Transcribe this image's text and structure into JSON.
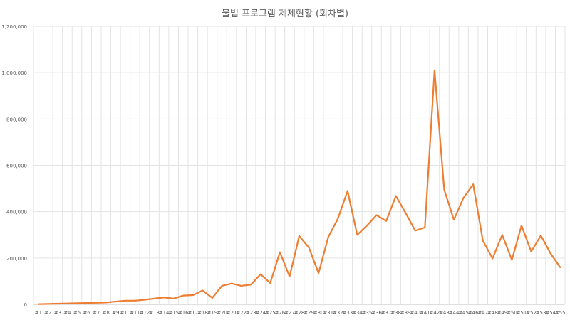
{
  "chart_data": {
    "type": "line",
    "title": "불법 프로그램 제제현황 (회차별)",
    "xlabel": "",
    "ylabel": "",
    "ylim": [
      0,
      1200000
    ],
    "yticks": [
      0,
      200000,
      400000,
      600000,
      800000,
      1000000,
      1200000
    ],
    "ytick_labels": [
      "0",
      "200,000",
      "400,000",
      "600,000",
      "800,000",
      "1,000,000",
      "1,200,000"
    ],
    "grid": true,
    "legend": "none",
    "line_color": "#ED7D31",
    "categories": [
      "#1",
      "#2",
      "#3",
      "#4",
      "#5",
      "#6",
      "#7",
      "#8",
      "#9",
      "#10",
      "#11",
      "#12",
      "#13",
      "#14",
      "#15",
      "#16",
      "#17",
      "#18",
      "#19",
      "#20",
      "#21",
      "#22",
      "#23",
      "#24",
      "#25",
      "#26",
      "#27",
      "#28",
      "#29",
      "#30",
      "#31",
      "#32",
      "#33",
      "#34",
      "#35",
      "#36",
      "#37",
      "#38",
      "#39",
      "#40",
      "#41",
      "#42",
      "#43",
      "#44",
      "#45",
      "#46",
      "#47",
      "#48",
      "#49",
      "#50",
      "#51",
      "#52",
      "#53",
      "#54",
      "#55"
    ],
    "series": [
      {
        "values": [
          1000,
          2000,
          3000,
          4000,
          5000,
          6000,
          7000,
          8000,
          12000,
          16000,
          16000,
          20000,
          25000,
          30000,
          25000,
          38000,
          40000,
          60000,
          28000,
          80000,
          90000,
          80000,
          85000,
          130000,
          92000,
          225000,
          120000,
          295000,
          245000,
          135000,
          290000,
          370000,
          490000,
          300000,
          340000,
          385000,
          360000,
          468000,
          395000,
          318000,
          332000,
          1010000,
          495000,
          365000,
          460000,
          518000,
          275000,
          198000,
          300000,
          192000,
          340000,
          228000,
          297000,
          220000,
          160000
        ]
      }
    ]
  }
}
